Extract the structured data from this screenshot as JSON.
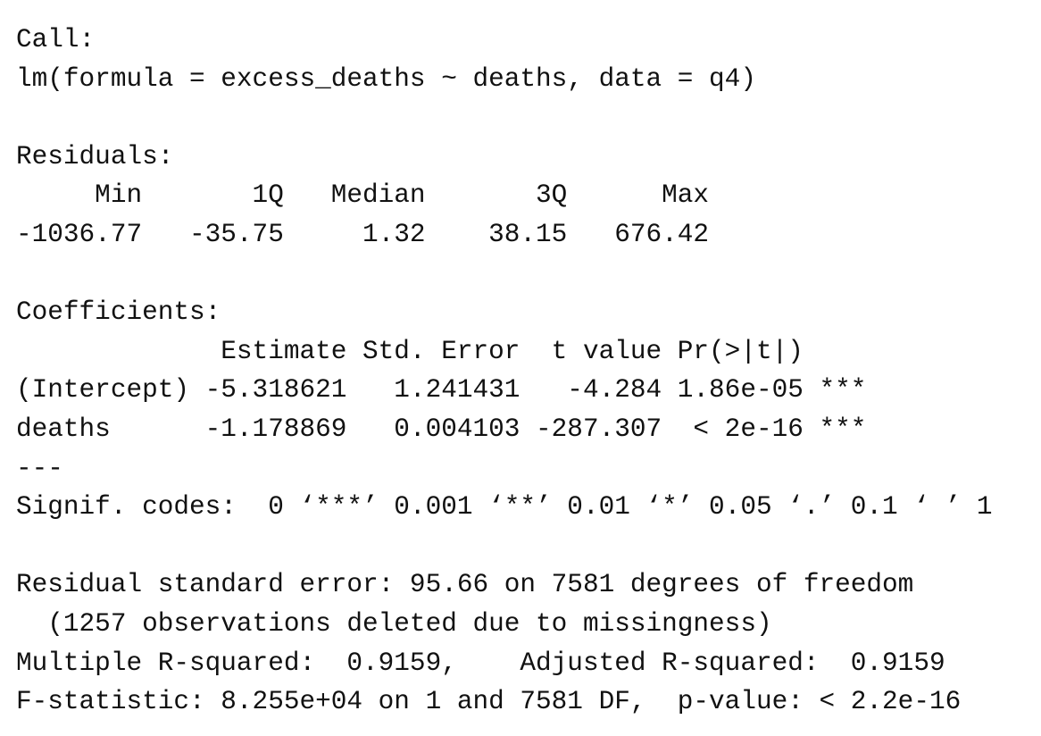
{
  "call": {
    "label": "Call:",
    "formula": "lm(formula = excess_deaths ~ deaths, data = q4)"
  },
  "residuals": {
    "label": "Residuals:",
    "header": "     Min       1Q   Median       3Q      Max",
    "values": "-1036.77   -35.75     1.32    38.15   676.42"
  },
  "coefficients": {
    "label": "Coefficients:",
    "header": "             Estimate Std. Error  t value Pr(>|t|)",
    "rows": [
      "(Intercept) -5.318621   1.241431   -4.284 1.86e-05 ***",
      "deaths      -1.178869   0.004103 -287.307  < 2e-16 ***"
    ],
    "separator": "---",
    "signif_codes": "Signif. codes:  0 ‘***’ 0.001 ‘**’ 0.01 ‘*’ 0.05 ‘.’ 0.1 ‘ ’ 1"
  },
  "summary": [
    "Residual standard error: 95.66 on 7581 degrees of freedom",
    "  (1257 observations deleted due to missingness)",
    "Multiple R-squared:  0.9159,    Adjusted R-squared:  0.9159",
    "F-statistic: 8.255e+04 on 1 and 7581 DF,  p-value: < 2.2e-16"
  ]
}
